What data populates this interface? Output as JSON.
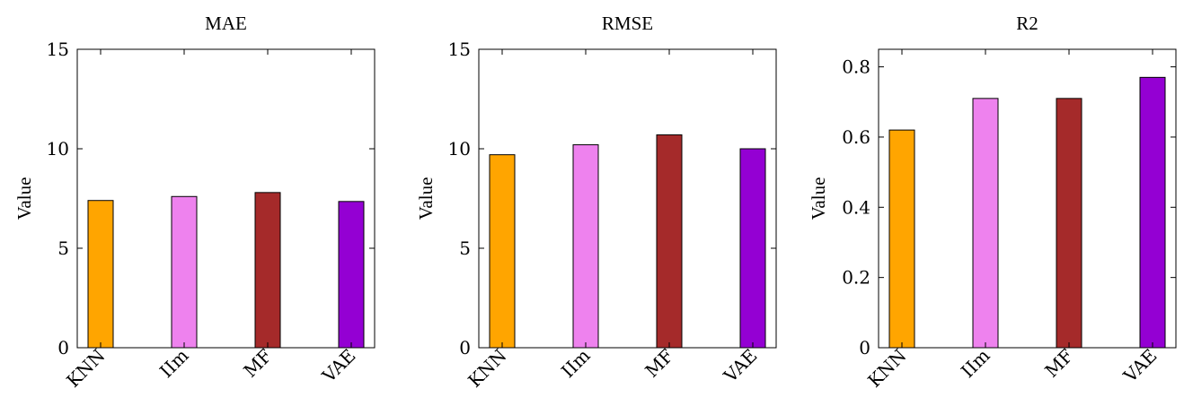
{
  "chart_data": [
    {
      "type": "bar",
      "title": "MAE",
      "ylabel": "Value",
      "categories": [
        "KNN",
        "IIm",
        "MF",
        "VAE"
      ],
      "values": [
        7.4,
        7.6,
        7.8,
        7.35
      ],
      "colors": [
        "#FFA500",
        "#EE82EE",
        "#A52A2A",
        "#9400D3"
      ],
      "ylim": [
        0,
        15
      ],
      "yticks": [
        0,
        5,
        10,
        15
      ],
      "ytick_labels": [
        "0",
        "5",
        "10",
        "15"
      ],
      "grid": false
    },
    {
      "type": "bar",
      "title": "RMSE",
      "ylabel": "Value",
      "categories": [
        "KNN",
        "IIm",
        "MF",
        "VAE"
      ],
      "values": [
        9.7,
        10.2,
        10.7,
        10.0
      ],
      "colors": [
        "#FFA500",
        "#EE82EE",
        "#A52A2A",
        "#9400D3"
      ],
      "ylim": [
        0,
        15
      ],
      "yticks": [
        0,
        5,
        10,
        15
      ],
      "ytick_labels": [
        "0",
        "5",
        "10",
        "15"
      ],
      "grid": false
    },
    {
      "type": "bar",
      "title": "R2",
      "ylabel": "Value",
      "categories": [
        "KNN",
        "IIm",
        "MF",
        "VAE"
      ],
      "values": [
        0.62,
        0.71,
        0.71,
        0.77
      ],
      "colors": [
        "#FFA500",
        "#EE82EE",
        "#A52A2A",
        "#9400D3"
      ],
      "ylim": [
        0,
        0.85
      ],
      "yticks": [
        0,
        0.2,
        0.4,
        0.6,
        0.8
      ],
      "ytick_labels": [
        "0",
        "0.2",
        "0.4",
        "0.6",
        "0.8"
      ],
      "grid": false
    }
  ]
}
